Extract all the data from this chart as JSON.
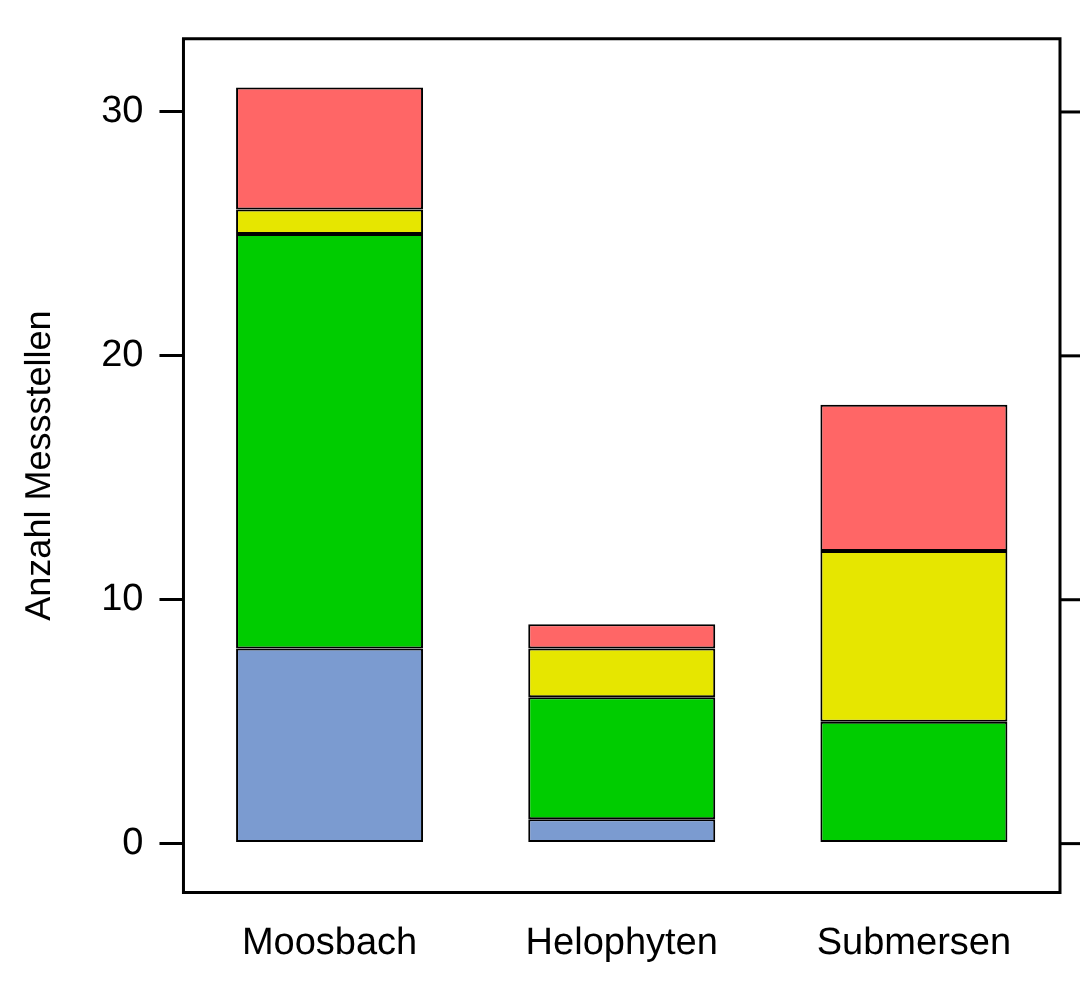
{
  "chart_data": {
    "type": "bar",
    "stacked": true,
    "ylabel": "Anzahl Messstellen",
    "categories": [
      "Moosbach",
      "Helophyten",
      "Submersen"
    ],
    "series": [
      {
        "color": "#7b9bd0",
        "values": [
          8,
          1,
          0
        ]
      },
      {
        "color": "#00cc00",
        "values": [
          17,
          5,
          5
        ]
      },
      {
        "color": "#e6e600",
        "values": [
          1,
          2,
          7
        ]
      },
      {
        "color": "#ff6666",
        "values": [
          5,
          1,
          6
        ]
      }
    ],
    "ylim": [
      -2,
      33
    ],
    "yticks": [
      0,
      10,
      20,
      30
    ],
    "legend": false
  }
}
